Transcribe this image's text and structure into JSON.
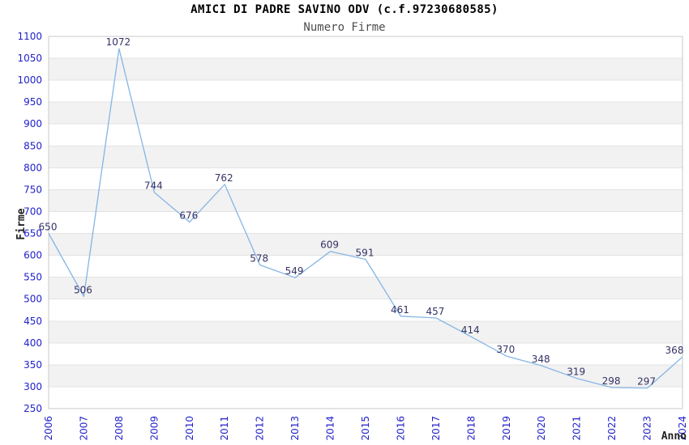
{
  "chart_data": {
    "type": "line",
    "title": "AMICI DI PADRE SAVINO ODV (c.f.97230680585)",
    "subtitle": "Numero Firme",
    "xlabel": "Anno",
    "ylabel": "Firme",
    "categories": [
      "2006",
      "2007",
      "2008",
      "2009",
      "2010",
      "2011",
      "2012",
      "2013",
      "2014",
      "2015",
      "2016",
      "2017",
      "2018",
      "2019",
      "2020",
      "2021",
      "2022",
      "2023",
      "2024"
    ],
    "values": [
      650,
      506,
      1072,
      744,
      676,
      762,
      578,
      549,
      609,
      591,
      461,
      457,
      414,
      370,
      348,
      319,
      298,
      297,
      368
    ],
    "ylim": [
      250,
      1100
    ],
    "ytick_step": 50,
    "grid": "horizontal gridlines every 50 with alternating light-gray bands",
    "legend": "none",
    "markers": "none",
    "colors": {
      "line": "#85b5e5",
      "tick_label": "#2121cc",
      "data_label": "#333366",
      "band": "#f2f2f2",
      "gridline": "#e3e3e3",
      "plot_border": "#c9c9c9",
      "title": "#000000",
      "subtitle": "#4d4d4d",
      "axis_title": "#222222",
      "background": "#ffffff"
    }
  }
}
